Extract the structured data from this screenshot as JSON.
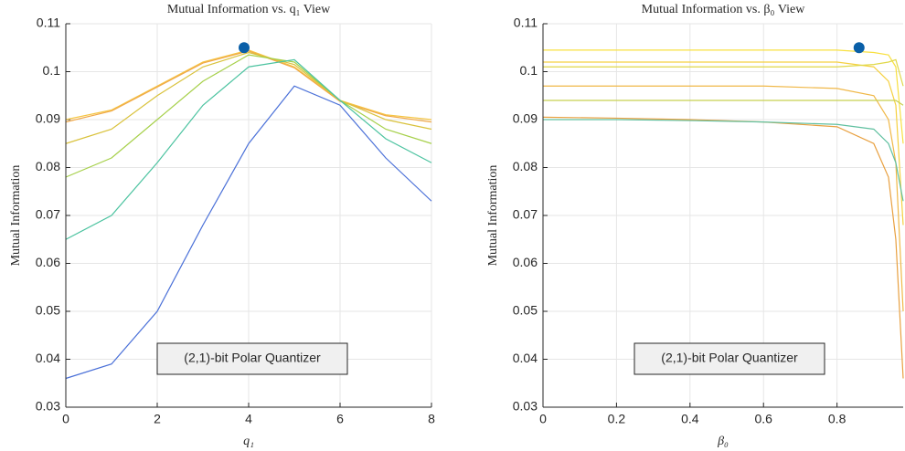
{
  "chart_data": [
    {
      "type": "line",
      "title": "Mutual Information vs. q₁ View",
      "xlabel": "q₁",
      "ylabel": "Mutual Information",
      "annotation": "(2,1)-bit Polar Quantizer",
      "x": [
        0,
        1,
        2,
        3,
        4,
        5,
        6,
        7,
        8
      ],
      "series": [
        {
          "color": "#f5c542",
          "values": [
            0.09,
            0.092,
            0.097,
            0.102,
            0.1045,
            0.101,
            0.094,
            0.091,
            0.09
          ]
        },
        {
          "color": "#f0a848",
          "values": [
            0.0895,
            0.0918,
            0.0968,
            0.1018,
            0.1043,
            0.1008,
            0.0938,
            0.0908,
            0.0895
          ]
        },
        {
          "color": "#d9c23c",
          "values": [
            0.085,
            0.088,
            0.095,
            0.101,
            0.104,
            0.1015,
            0.094,
            0.09,
            0.088
          ]
        },
        {
          "color": "#a6d04a",
          "values": [
            0.078,
            0.082,
            0.09,
            0.098,
            0.1035,
            0.102,
            0.094,
            0.088,
            0.085
          ]
        },
        {
          "color": "#4cc3a0",
          "values": [
            0.065,
            0.07,
            0.081,
            0.093,
            0.101,
            0.1025,
            0.094,
            0.086,
            0.081
          ]
        },
        {
          "color": "#4a70d8",
          "values": [
            0.036,
            0.039,
            0.05,
            0.068,
            0.085,
            0.097,
            0.093,
            0.082,
            0.073
          ]
        }
      ],
      "optimum": {
        "x": 3.9,
        "y": 0.105,
        "color": "#0a5fa8"
      },
      "xlim": [
        0,
        8
      ],
      "xticks": [
        0,
        2,
        4,
        6,
        8
      ],
      "ylim": [
        0.03,
        0.11
      ],
      "yticks": [
        0.03,
        0.04,
        0.05,
        0.06,
        0.07,
        0.08,
        0.09,
        0.1,
        0.11
      ],
      "grid": true
    },
    {
      "type": "line",
      "title": "Mutual Information vs. β₀ View",
      "xlabel": "β₀",
      "ylabel": "Mutual Information",
      "annotation": "(2,1)-bit Polar Quantizer",
      "x": [
        0,
        0.2,
        0.4,
        0.6,
        0.8,
        0.9,
        0.94,
        0.96,
        0.98
      ],
      "series": [
        {
          "color": "#e8a040",
          "values": [
            0.0905,
            0.0903,
            0.09,
            0.0895,
            0.0885,
            0.085,
            0.078,
            0.065,
            0.036
          ]
        },
        {
          "color": "#f0b848",
          "values": [
            0.097,
            0.097,
            0.097,
            0.097,
            0.0965,
            0.095,
            0.09,
            0.081,
            0.05
          ]
        },
        {
          "color": "#f5d040",
          "values": [
            0.102,
            0.102,
            0.102,
            0.102,
            0.102,
            0.101,
            0.098,
            0.093,
            0.068
          ]
        },
        {
          "color": "#f8e040",
          "values": [
            0.1045,
            0.1045,
            0.1045,
            0.1045,
            0.1045,
            0.104,
            0.1035,
            0.101,
            0.085
          ]
        },
        {
          "color": "#e0d848",
          "values": [
            0.101,
            0.101,
            0.101,
            0.101,
            0.101,
            0.1015,
            0.102,
            0.1025,
            0.097
          ]
        },
        {
          "color": "#c8d050",
          "values": [
            0.094,
            0.094,
            0.094,
            0.094,
            0.094,
            0.094,
            0.094,
            0.094,
            0.093
          ]
        },
        {
          "color": "#60c0a0",
          "values": [
            0.09,
            0.09,
            0.0898,
            0.0895,
            0.089,
            0.088,
            0.085,
            0.081,
            0.073
          ]
        }
      ],
      "optimum": {
        "x": 0.86,
        "y": 0.105,
        "color": "#0a5fa8"
      },
      "xlim": [
        0,
        0.98
      ],
      "xticks": [
        0,
        0.2,
        0.4,
        0.6,
        0.8
      ],
      "ylim": [
        0.03,
        0.11
      ],
      "yticks": [
        0.03,
        0.04,
        0.05,
        0.06,
        0.07,
        0.08,
        0.09,
        0.1,
        0.11
      ],
      "grid": true
    }
  ]
}
